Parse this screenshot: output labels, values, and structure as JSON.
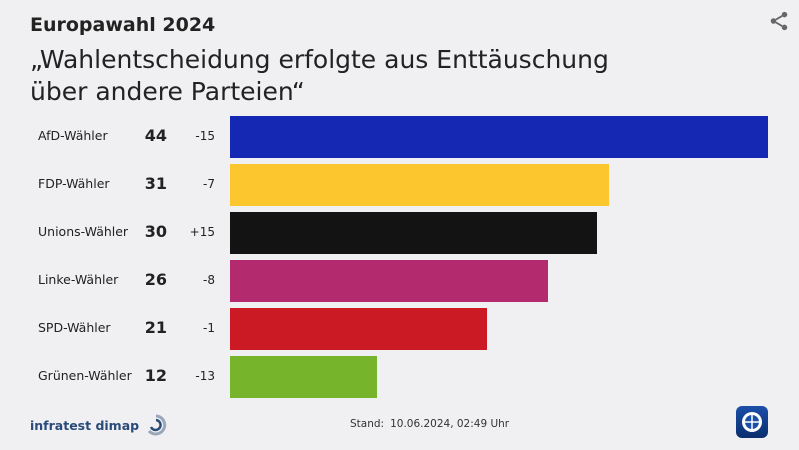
{
  "header": {
    "kicker": "Europawahl 2024",
    "title": "„Wahlentscheidung erfolgte aus Enttäuschung über andere Parteien“"
  },
  "icons": {
    "share": "share-icon",
    "source": "infratest-dimap-logo",
    "broadcaster": "tagesschau-logo"
  },
  "footer": {
    "source_label": "infratest dimap",
    "stand_label": "Stand:",
    "stand_value": "10.06.2024, 02:49 Uhr"
  },
  "chart_data": {
    "type": "bar",
    "orientation": "horizontal",
    "categories": [
      "AfD-Wähler",
      "FDP-Wähler",
      "Unions-Wähler",
      "Linke-Wähler",
      "SPD-Wähler",
      "Grünen-Wähler"
    ],
    "values": [
      44,
      31,
      30,
      26,
      21,
      12
    ],
    "value_labels": [
      "44",
      "31",
      "30",
      "26",
      "21",
      "12"
    ],
    "changes": [
      "-15",
      "-7",
      "+15",
      "-8",
      "-1",
      "-13"
    ],
    "colors": [
      "#1428b4",
      "#fcc62e",
      "#131313",
      "#b32b6e",
      "#cc1a24",
      "#76b42b"
    ],
    "xlim": [
      0,
      44
    ]
  }
}
